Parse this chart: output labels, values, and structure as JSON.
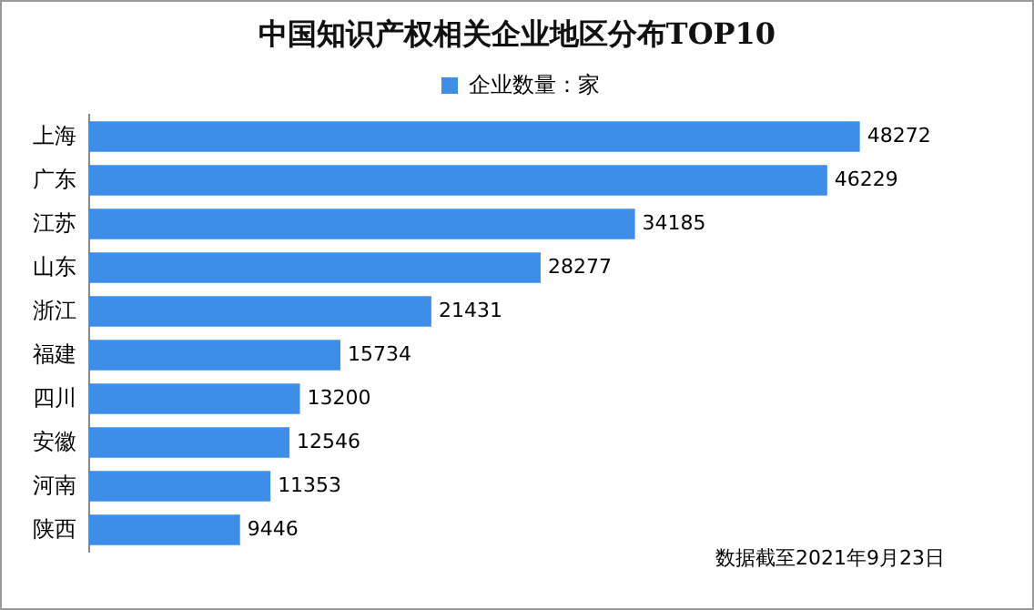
{
  "chart_data": {
    "type": "bar",
    "orientation": "horizontal",
    "title": "中国知识产权相关企业地区分布TOP10",
    "categories": [
      "上海",
      "广东",
      "江苏",
      "山东",
      "浙江",
      "福建",
      "四川",
      "安徽",
      "河南",
      "陕西"
    ],
    "series": [
      {
        "name": "企业数量：家",
        "color": "#3d8ee8",
        "values": [
          48272,
          46229,
          34185,
          28277,
          21431,
          15734,
          13200,
          12546,
          11353,
          9446
        ]
      }
    ],
    "data_labels": true,
    "legend": "top",
    "annotations": [
      "数据截至2021年9月23日"
    ]
  }
}
